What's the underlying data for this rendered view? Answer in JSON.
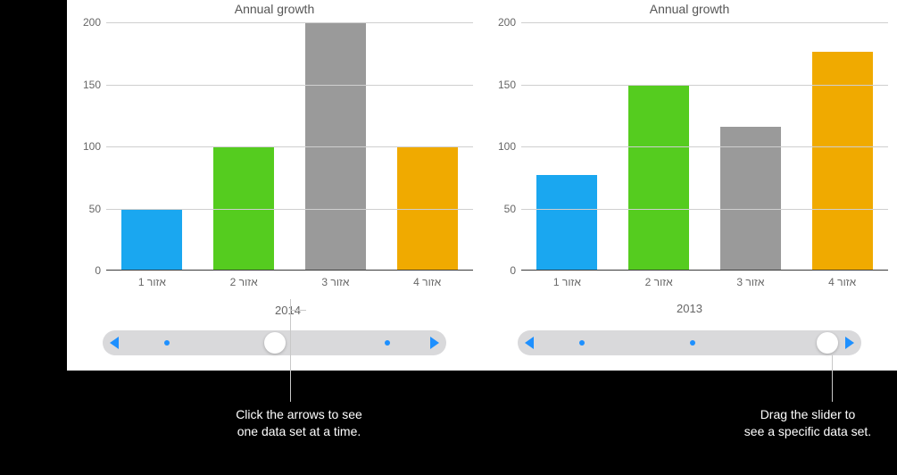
{
  "canvas": {
    "background_color": "#ffffff"
  },
  "callouts": {
    "label": "Click the arrows to see\none data set at a time.",
    "slider": "Drag the slider to\nsee a specific data set."
  },
  "charts": [
    {
      "id": "chart-left",
      "title": "Annual growth",
      "type": "bar",
      "year_label": "2014",
      "categories": [
        "אזור 1",
        "אזור 2",
        "אזור 3",
        "אזור 4"
      ],
      "values": [
        49,
        100,
        200,
        100
      ],
      "bar_colors": [
        "#1aa7f0",
        "#55cc1f",
        "#9a9a9a",
        "#f0aa00"
      ],
      "ylim": [
        0,
        200
      ],
      "ytick_step": 50,
      "grid_color": "#cfcfcf",
      "axis_color": "#3a3a3a",
      "title_fontsize": 14,
      "label_fontsize": 12,
      "slider": {
        "dots": [
          0.18,
          0.82
        ],
        "knob": 0.5
      }
    },
    {
      "id": "chart-right",
      "title": "Annual growth",
      "type": "bar",
      "year_label": "2013",
      "categories": [
        "אזור 1",
        "אזור 2",
        "אזור 3",
        "אזור 4"
      ],
      "values": [
        77,
        150,
        116,
        176
      ],
      "bar_colors": [
        "#1aa7f0",
        "#55cc1f",
        "#9a9a9a",
        "#f0aa00"
      ],
      "ylim": [
        0,
        200
      ],
      "ytick_step": 50,
      "grid_color": "#cfcfcf",
      "axis_color": "#3a3a3a",
      "title_fontsize": 14,
      "label_fontsize": 12,
      "slider": {
        "dots": [
          0.18,
          0.5
        ],
        "knob": 0.9
      }
    }
  ]
}
